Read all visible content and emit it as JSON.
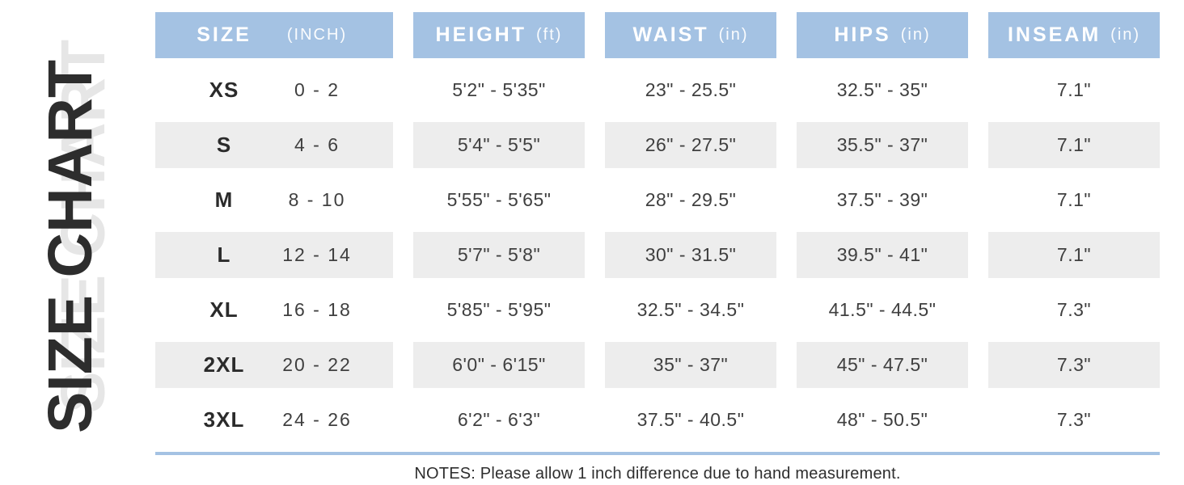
{
  "page": {
    "vertical_title": "SIZE CHART",
    "notes": "NOTES: Please allow 1 inch difference due to hand measurement."
  },
  "colors": {
    "header_bg": "#a4c2e3",
    "header_text": "#ffffff",
    "row_alt_bg": "#ededed",
    "divider": "#a4c2e3",
    "title_text": "#2d2d2d",
    "title_shadow": "#e6e6e6",
    "body_text": "#3f3f3f"
  },
  "table": {
    "headers": [
      {
        "label": "SIZE",
        "unit": "(INCH)"
      },
      {
        "label": "HEIGHT",
        "unit": "(ft)"
      },
      {
        "label": "WAIST",
        "unit": "(in)"
      },
      {
        "label": "HIPS",
        "unit": "(in)"
      },
      {
        "label": "INSEAM",
        "unit": "(in)"
      }
    ],
    "rows": [
      {
        "size": "XS",
        "size_range": "0 - 2",
        "height": "5'2\" - 5'35\"",
        "waist": "23\" - 25.5\"",
        "hips": "32.5\" - 35\"",
        "inseam": "7.1\"",
        "shaded": false
      },
      {
        "size": "S",
        "size_range": "4 - 6",
        "height": "5'4\" - 5'5\"",
        "waist": "26\" - 27.5\"",
        "hips": "35.5\" - 37\"",
        "inseam": "7.1\"",
        "shaded": true
      },
      {
        "size": "M",
        "size_range": "8 - 10",
        "height": "5'55\" - 5'65\"",
        "waist": "28\" - 29.5\"",
        "hips": "37.5\" - 39\"",
        "inseam": "7.1\"",
        "shaded": false
      },
      {
        "size": "L",
        "size_range": "12 - 14",
        "height": "5'7\" - 5'8\"",
        "waist": "30\" - 31.5\"",
        "hips": "39.5\" - 41\"",
        "inseam": "7.1\"",
        "shaded": true
      },
      {
        "size": "XL",
        "size_range": "16 - 18",
        "height": "5'85\" - 5'95\"",
        "waist": "32.5\" - 34.5\"",
        "hips": "41.5\" - 44.5\"",
        "inseam": "7.3\"",
        "shaded": false
      },
      {
        "size": "2XL",
        "size_range": "20 - 22",
        "height": "6'0\" - 6'15\"",
        "waist": "35\" - 37\"",
        "hips": "45\" - 47.5\"",
        "inseam": "7.3\"",
        "shaded": true
      },
      {
        "size": "3XL",
        "size_range": "24 - 26",
        "height": "6'2\" - 6'3\"",
        "waist": "37.5\" - 40.5\"",
        "hips": "48\" - 50.5\"",
        "inseam": "7.3\"",
        "shaded": false
      }
    ]
  },
  "chart_data": {
    "type": "table",
    "title": "SIZE CHART",
    "columns": [
      "SIZE",
      "SIZE (INCH)",
      "HEIGHT (ft)",
      "WAIST (in)",
      "HIPS (in)",
      "INSEAM (in)"
    ],
    "rows": [
      [
        "XS",
        "0 - 2",
        "5'2\" - 5'35\"",
        "23\" - 25.5\"",
        "32.5\" - 35\"",
        "7.1\""
      ],
      [
        "S",
        "4 - 6",
        "5'4\" - 5'5\"",
        "26\" - 27.5\"",
        "35.5\" - 37\"",
        "7.1\""
      ],
      [
        "M",
        "8 - 10",
        "5'55\" - 5'65\"",
        "28\" - 29.5\"",
        "37.5\" - 39\"",
        "7.1\""
      ],
      [
        "L",
        "12 - 14",
        "5'7\" - 5'8\"",
        "30\" - 31.5\"",
        "39.5\" - 41\"",
        "7.1\""
      ],
      [
        "XL",
        "16 - 18",
        "5'85\" - 5'95\"",
        "32.5\" - 34.5\"",
        "41.5\" - 44.5\"",
        "7.3\""
      ],
      [
        "2XL",
        "20 - 22",
        "6'0\" - 6'15\"",
        "35\" - 37\"",
        "45\" - 47.5\"",
        "7.3\""
      ],
      [
        "3XL",
        "24 - 26",
        "6'2\" - 6'3\"",
        "37.5\" - 40.5\"",
        "48\" - 50.5\"",
        "7.3\""
      ]
    ],
    "notes": "NOTES: Please allow 1 inch difference due to hand measurement.",
    "layout": {
      "shaded_row_indices": [
        1,
        3,
        5
      ],
      "header_bg": "#a4c2e3",
      "row_alt_bg": "#ededed"
    }
  }
}
